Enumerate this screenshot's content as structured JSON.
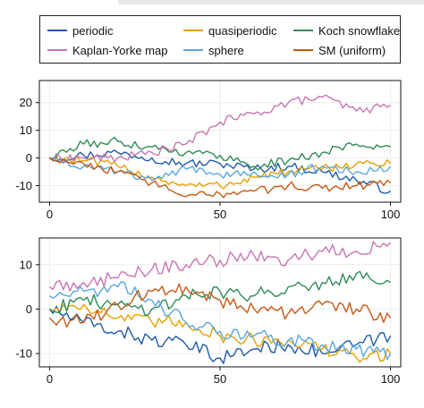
{
  "chart_data": [
    {
      "type": "line",
      "x": [
        0,
        100
      ],
      "xticks": [
        0,
        50,
        100
      ],
      "yticks": [
        20,
        10,
        0,
        -10
      ],
      "xlim": [
        -3,
        103
      ],
      "ylim": [
        -16,
        28
      ],
      "grid": true,
      "legend": "top",
      "series": [
        {
          "name": "periodic",
          "color": "#1f5aa6",
          "points": [
            [
              0,
              0
            ],
            [
              10,
              1
            ],
            [
              20,
              2
            ],
            [
              30,
              0
            ],
            [
              40,
              -2
            ],
            [
              50,
              -2
            ],
            [
              60,
              -4
            ],
            [
              70,
              -3
            ],
            [
              80,
              -5
            ],
            [
              90,
              -8
            ],
            [
              100,
              -12
            ]
          ]
        },
        {
          "name": "quasiperiodic",
          "color": "#e6a000",
          "points": [
            [
              0,
              0
            ],
            [
              10,
              -1
            ],
            [
              20,
              -3
            ],
            [
              30,
              -7
            ],
            [
              40,
              -10
            ],
            [
              50,
              -10
            ],
            [
              60,
              -7
            ],
            [
              70,
              -5
            ],
            [
              80,
              -4
            ],
            [
              90,
              -2
            ],
            [
              100,
              -2
            ]
          ]
        },
        {
          "name": "Koch snowflake",
          "color": "#2e8b57",
          "points": [
            [
              0,
              0
            ],
            [
              10,
              5
            ],
            [
              20,
              6
            ],
            [
              30,
              4
            ],
            [
              40,
              2
            ],
            [
              50,
              1
            ],
            [
              60,
              -3
            ],
            [
              70,
              -1
            ],
            [
              80,
              2
            ],
            [
              90,
              5
            ],
            [
              100,
              4
            ]
          ]
        },
        {
          "name": "Kaplan-Yorke map",
          "color": "#c875b2",
          "points": [
            [
              0,
              0
            ],
            [
              10,
              0
            ],
            [
              20,
              0
            ],
            [
              30,
              2
            ],
            [
              40,
              5
            ],
            [
              50,
              13
            ],
            [
              60,
              16
            ],
            [
              70,
              20
            ],
            [
              80,
              22
            ],
            [
              90,
              17
            ],
            [
              100,
              19
            ]
          ]
        },
        {
          "name": "sphere",
          "color": "#5aa7e0",
          "points": [
            [
              0,
              0
            ],
            [
              10,
              -3
            ],
            [
              20,
              -5
            ],
            [
              30,
              -8
            ],
            [
              40,
              -4
            ],
            [
              50,
              -6
            ],
            [
              60,
              -5
            ],
            [
              70,
              -6
            ],
            [
              80,
              -3
            ],
            [
              90,
              -5
            ],
            [
              100,
              -3
            ]
          ]
        },
        {
          "name": "SM (uniform)",
          "color": "#c45a17",
          "points": [
            [
              0,
              0
            ],
            [
              10,
              -2
            ],
            [
              20,
              -5
            ],
            [
              30,
              -9
            ],
            [
              40,
              -14
            ],
            [
              50,
              -13
            ],
            [
              60,
              -12
            ],
            [
              70,
              -10
            ],
            [
              80,
              -11
            ],
            [
              90,
              -10
            ],
            [
              100,
              -9
            ]
          ]
        }
      ]
    },
    {
      "type": "line",
      "x": [
        0,
        100
      ],
      "xticks": [
        0,
        50,
        100
      ],
      "xtick_labels": [
        "0",
        "50",
        "100"
      ],
      "yticks": [
        10,
        0,
        -10
      ],
      "xlim": [
        -3,
        103
      ],
      "ylim": [
        -13,
        16
      ],
      "grid": true,
      "series": [
        {
          "name": "periodic",
          "color": "#1f5aa6",
          "points": [
            [
              0,
              0
            ],
            [
              10,
              -3
            ],
            [
              20,
              -5
            ],
            [
              30,
              -7
            ],
            [
              40,
              -8
            ],
            [
              50,
              -11
            ],
            [
              60,
              -9
            ],
            [
              70,
              -8
            ],
            [
              80,
              -10
            ],
            [
              90,
              -8
            ],
            [
              100,
              -6
            ]
          ]
        },
        {
          "name": "quasiperiodic",
          "color": "#e6a000",
          "points": [
            [
              0,
              0
            ],
            [
              10,
              1
            ],
            [
              20,
              -2
            ],
            [
              30,
              -3
            ],
            [
              40,
              -3
            ],
            [
              50,
              -6
            ],
            [
              60,
              -7
            ],
            [
              70,
              -7
            ],
            [
              80,
              -9
            ],
            [
              90,
              -11
            ],
            [
              100,
              -10
            ]
          ]
        },
        {
          "name": "Koch snowflake",
          "color": "#2e8b57",
          "points": [
            [
              0,
              0
            ],
            [
              10,
              2
            ],
            [
              20,
              1
            ],
            [
              30,
              0
            ],
            [
              40,
              3
            ],
            [
              50,
              4
            ],
            [
              60,
              3
            ],
            [
              70,
              5
            ],
            [
              80,
              6
            ],
            [
              90,
              8
            ],
            [
              100,
              6
            ]
          ]
        },
        {
          "name": "Kaplan-Yorke map",
          "color": "#c875b2",
          "points": [
            [
              0,
              5
            ],
            [
              10,
              6
            ],
            [
              20,
              7
            ],
            [
              30,
              9
            ],
            [
              40,
              10
            ],
            [
              50,
              11
            ],
            [
              60,
              12
            ],
            [
              70,
              11
            ],
            [
              80,
              13
            ],
            [
              90,
              13
            ],
            [
              100,
              15
            ]
          ]
        },
        {
          "name": "sphere",
          "color": "#5aa7e0",
          "points": [
            [
              0,
              3
            ],
            [
              10,
              4
            ],
            [
              20,
              5
            ],
            [
              30,
              2
            ],
            [
              40,
              -3
            ],
            [
              50,
              -5
            ],
            [
              60,
              -6
            ],
            [
              70,
              -7
            ],
            [
              80,
              -8
            ],
            [
              90,
              -9
            ],
            [
              100,
              -10
            ]
          ]
        },
        {
          "name": "SM (uniform)",
          "color": "#c45a17",
          "points": [
            [
              0,
              -2
            ],
            [
              10,
              -3
            ],
            [
              20,
              1
            ],
            [
              30,
              4
            ],
            [
              40,
              5
            ],
            [
              50,
              2
            ],
            [
              60,
              0
            ],
            [
              70,
              -1
            ],
            [
              80,
              1
            ],
            [
              90,
              0
            ],
            [
              100,
              -2
            ]
          ]
        }
      ]
    }
  ]
}
